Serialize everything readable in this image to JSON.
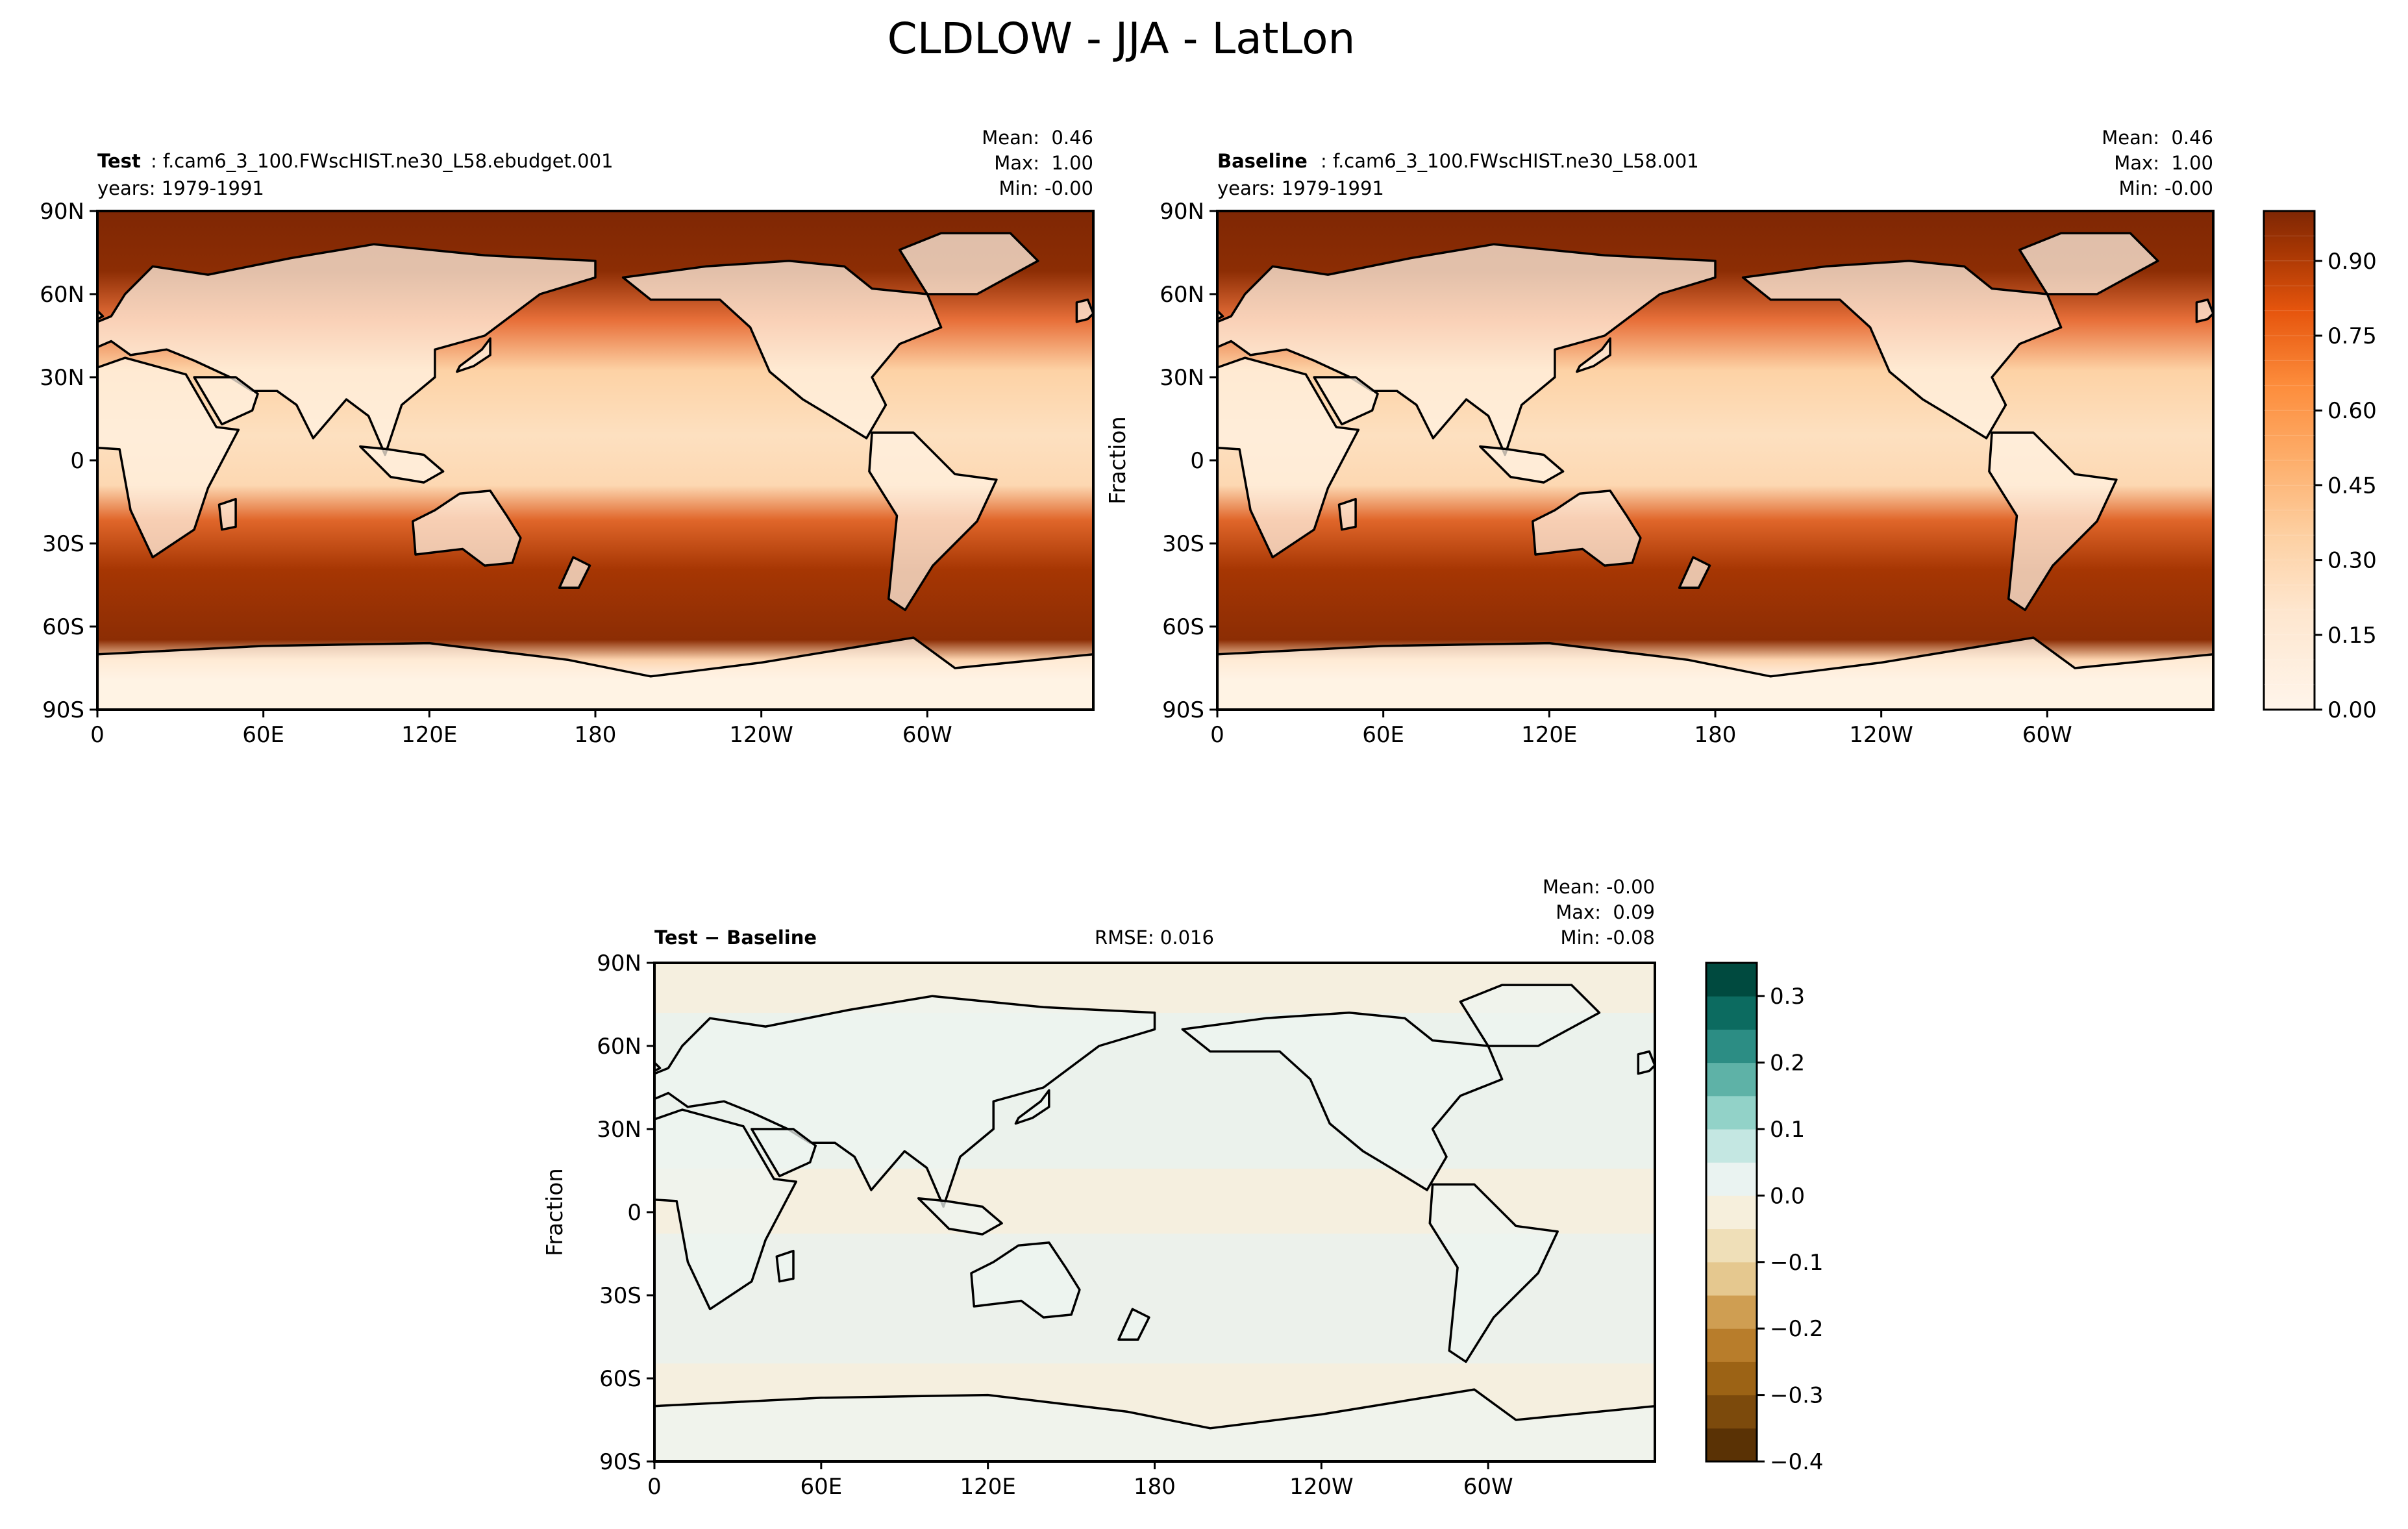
{
  "figure": {
    "title": "CLDLOW - JJA - LatLon"
  },
  "chart_data": [
    {
      "type": "heatmap",
      "panel": "test",
      "title_bold": "Test",
      "title_text": ": f.cam6_3_100.FWscHIST.ne30_L58.ebudget.001",
      "subtitle": "years: 1979-1991",
      "stats": [
        "Mean:  0.46",
        "Max:  1.00",
        "Min: -0.00"
      ],
      "ylabel": "",
      "x_ticks": [
        "0",
        "60E",
        "120E",
        "180",
        "120W",
        "60W"
      ],
      "y_ticks": [
        "90N",
        "60N",
        "30N",
        "0",
        "30S",
        "60S",
        "90S"
      ],
      "xlim": [
        0,
        360
      ],
      "ylim": [
        -90,
        90
      ],
      "colormap": "Oranges",
      "value_range": [
        0,
        1
      ]
    },
    {
      "type": "heatmap",
      "panel": "baseline",
      "title_bold": "Baseline",
      "title_text": ": f.cam6_3_100.FWscHIST.ne30_L58.001",
      "subtitle": "years: 1979-1991",
      "stats": [
        "Mean:  0.46",
        "Max:  1.00",
        "Min: -0.00"
      ],
      "ylabel": "Fraction",
      "x_ticks": [
        "0",
        "60E",
        "120E",
        "180",
        "120W",
        "60W"
      ],
      "y_ticks": [
        "90N",
        "60N",
        "30N",
        "0",
        "30S",
        "60S",
        "90S"
      ],
      "xlim": [
        0,
        360
      ],
      "ylim": [
        -90,
        90
      ],
      "colormap": "Oranges",
      "value_range": [
        0,
        1
      ],
      "colorbar": {
        "ticks": [
          {
            "value": 0.0,
            "label": "0.00"
          },
          {
            "value": 0.15,
            "label": "0.15"
          },
          {
            "value": 0.3,
            "label": "0.30"
          },
          {
            "value": 0.45,
            "label": "0.45"
          },
          {
            "value": 0.6,
            "label": "0.60"
          },
          {
            "value": 0.75,
            "label": "0.75"
          },
          {
            "value": 0.9,
            "label": "0.90"
          }
        ],
        "range": [
          0,
          1
        ],
        "levels": 20
      }
    },
    {
      "type": "heatmap",
      "panel": "difference",
      "title_bold": "Test − Baseline",
      "center_text": "RMSE: 0.016",
      "stats": [
        "Mean: -0.00",
        "Max:  0.09",
        "Min: -0.08"
      ],
      "ylabel": "Fraction",
      "x_ticks": [
        "0",
        "60E",
        "120E",
        "180",
        "120W",
        "60W"
      ],
      "y_ticks": [
        "90N",
        "60N",
        "30N",
        "0",
        "30S",
        "60S",
        "90S"
      ],
      "xlim": [
        0,
        360
      ],
      "ylim": [
        -90,
        90
      ],
      "colormap": "BrBG",
      "value_range": [
        -0.4,
        0.35
      ],
      "colorbar": {
        "ticks": [
          {
            "value": 0.3,
            "label": "0.3"
          },
          {
            "value": 0.2,
            "label": "0.2"
          },
          {
            "value": 0.1,
            "label": "0.1"
          },
          {
            "value": 0.0,
            "label": "0.0"
          },
          {
            "value": -0.1,
            "label": "−0.1"
          },
          {
            "value": -0.2,
            "label": "−0.2"
          },
          {
            "value": -0.3,
            "label": "−0.3"
          },
          {
            "value": -0.4,
            "label": "−0.4"
          }
        ],
        "range": [
          -0.4,
          0.35
        ],
        "colors": [
          "#5a3205",
          "#7c4a0c",
          "#9c6315",
          "#b87d2b",
          "#cf9e52",
          "#e5c88f",
          "#efdfb8",
          "#f6efdc",
          "#eaf3f1",
          "#c4e7e2",
          "#92d2c8",
          "#5eb2a7",
          "#2c8d84",
          "#0c6b60",
          "#004a3f"
        ]
      }
    }
  ]
}
